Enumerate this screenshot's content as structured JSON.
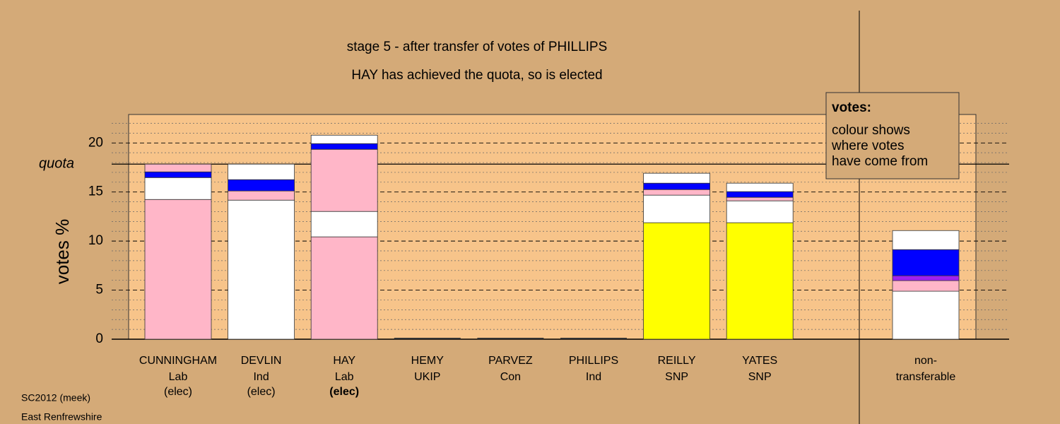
{
  "chart_data": {
    "type": "stacked-bar",
    "title": "stage 5 - after transfer of votes of PHILLIPS",
    "subtitle": "HAY has achieved the quota, so is elected",
    "y_label": "votes %",
    "ylim": [
      0,
      22.9
    ],
    "yticks": [
      0,
      5,
      10,
      15,
      20
    ],
    "yminor": [
      1,
      2,
      3,
      4,
      6,
      7,
      8,
      9,
      11,
      12,
      13,
      14,
      16,
      17,
      18,
      19,
      21,
      22
    ],
    "quota": 17.84,
    "quota_label": "quota",
    "bars": [
      {
        "name": "CUNNINGHAM",
        "party": "Lab",
        "status": "(elec)",
        "status_bold": false,
        "segments": [
          {
            "value": 14.24,
            "color": "#ffb6c8"
          },
          {
            "value": 2.23,
            "color": "#ffffff"
          },
          {
            "value": 0.58,
            "color": "#0000ff"
          },
          {
            "value": 0.79,
            "color": "#ffb6c8"
          }
        ]
      },
      {
        "name": "DEVLIN",
        "party": "Ind",
        "status": "(elec)",
        "status_bold": false,
        "segments": [
          {
            "value": 14.17,
            "color": "#ffffff"
          },
          {
            "value": 0.94,
            "color": "#ffb6c8"
          },
          {
            "value": 1.15,
            "color": "#0000ff"
          },
          {
            "value": 1.58,
            "color": "#ffffff"
          }
        ]
      },
      {
        "name": "HAY",
        "party": "Lab",
        "status": "(elec)",
        "status_bold": true,
        "segments": [
          {
            "value": 10.43,
            "color": "#ffb6c8"
          },
          {
            "value": 2.59,
            "color": "#ffffff"
          },
          {
            "value": 6.33,
            "color": "#ffb6c8"
          },
          {
            "value": 0.58,
            "color": "#0000ff"
          },
          {
            "value": 0.86,
            "color": "#ffffff"
          }
        ]
      },
      {
        "name": "HEMY",
        "party": "UKIP",
        "status": null,
        "status_bold": false,
        "segments": [
          {
            "value": 0,
            "color": "#ffffff"
          }
        ]
      },
      {
        "name": "PARVEZ",
        "party": "Con",
        "status": null,
        "status_bold": false,
        "segments": [
          {
            "value": 0,
            "color": "#ffffff"
          }
        ]
      },
      {
        "name": "PHILLIPS",
        "party": "Ind",
        "status": null,
        "status_bold": false,
        "segments": [
          {
            "value": 0,
            "color": "#ffffff"
          }
        ]
      },
      {
        "name": "REILLY",
        "party": "SNP",
        "status": null,
        "status_bold": false,
        "segments": [
          {
            "value": 11.87,
            "color": "#ffff00"
          },
          {
            "value": 2.81,
            "color": "#ffffff"
          },
          {
            "value": 0.57,
            "color": "#ffb6c8"
          },
          {
            "value": 0.65,
            "color": "#0000ff"
          },
          {
            "value": 1.01,
            "color": "#ffffff"
          }
        ]
      },
      {
        "name": "YATES",
        "party": "SNP",
        "status": null,
        "status_bold": false,
        "segments": [
          {
            "value": 11.87,
            "color": "#ffff00"
          },
          {
            "value": 2.23,
            "color": "#ffffff"
          },
          {
            "value": 0.36,
            "color": "#ffb6c8"
          },
          {
            "value": 0.58,
            "color": "#0000ff"
          },
          {
            "value": 0.86,
            "color": "#ffffff"
          }
        ]
      },
      {
        "name": "non-",
        "party": "transferable",
        "status": null,
        "status_bold": false,
        "segments": [
          {
            "value": 4.89,
            "color": "#ffffff"
          },
          {
            "value": 1.08,
            "color": "#ffb6c8"
          },
          {
            "value": 0.5,
            "color": "#a020f0"
          },
          {
            "value": 2.66,
            "color": "#0000ff"
          },
          {
            "value": 1.94,
            "color": "#ffffff"
          }
        ]
      }
    ],
    "legend_title": "votes:",
    "legend_lines": [
      "colour shows",
      "where votes",
      "have come from"
    ],
    "footnotes": [
      "SC2012 (meek)",
      "East Renfrewshire"
    ]
  }
}
